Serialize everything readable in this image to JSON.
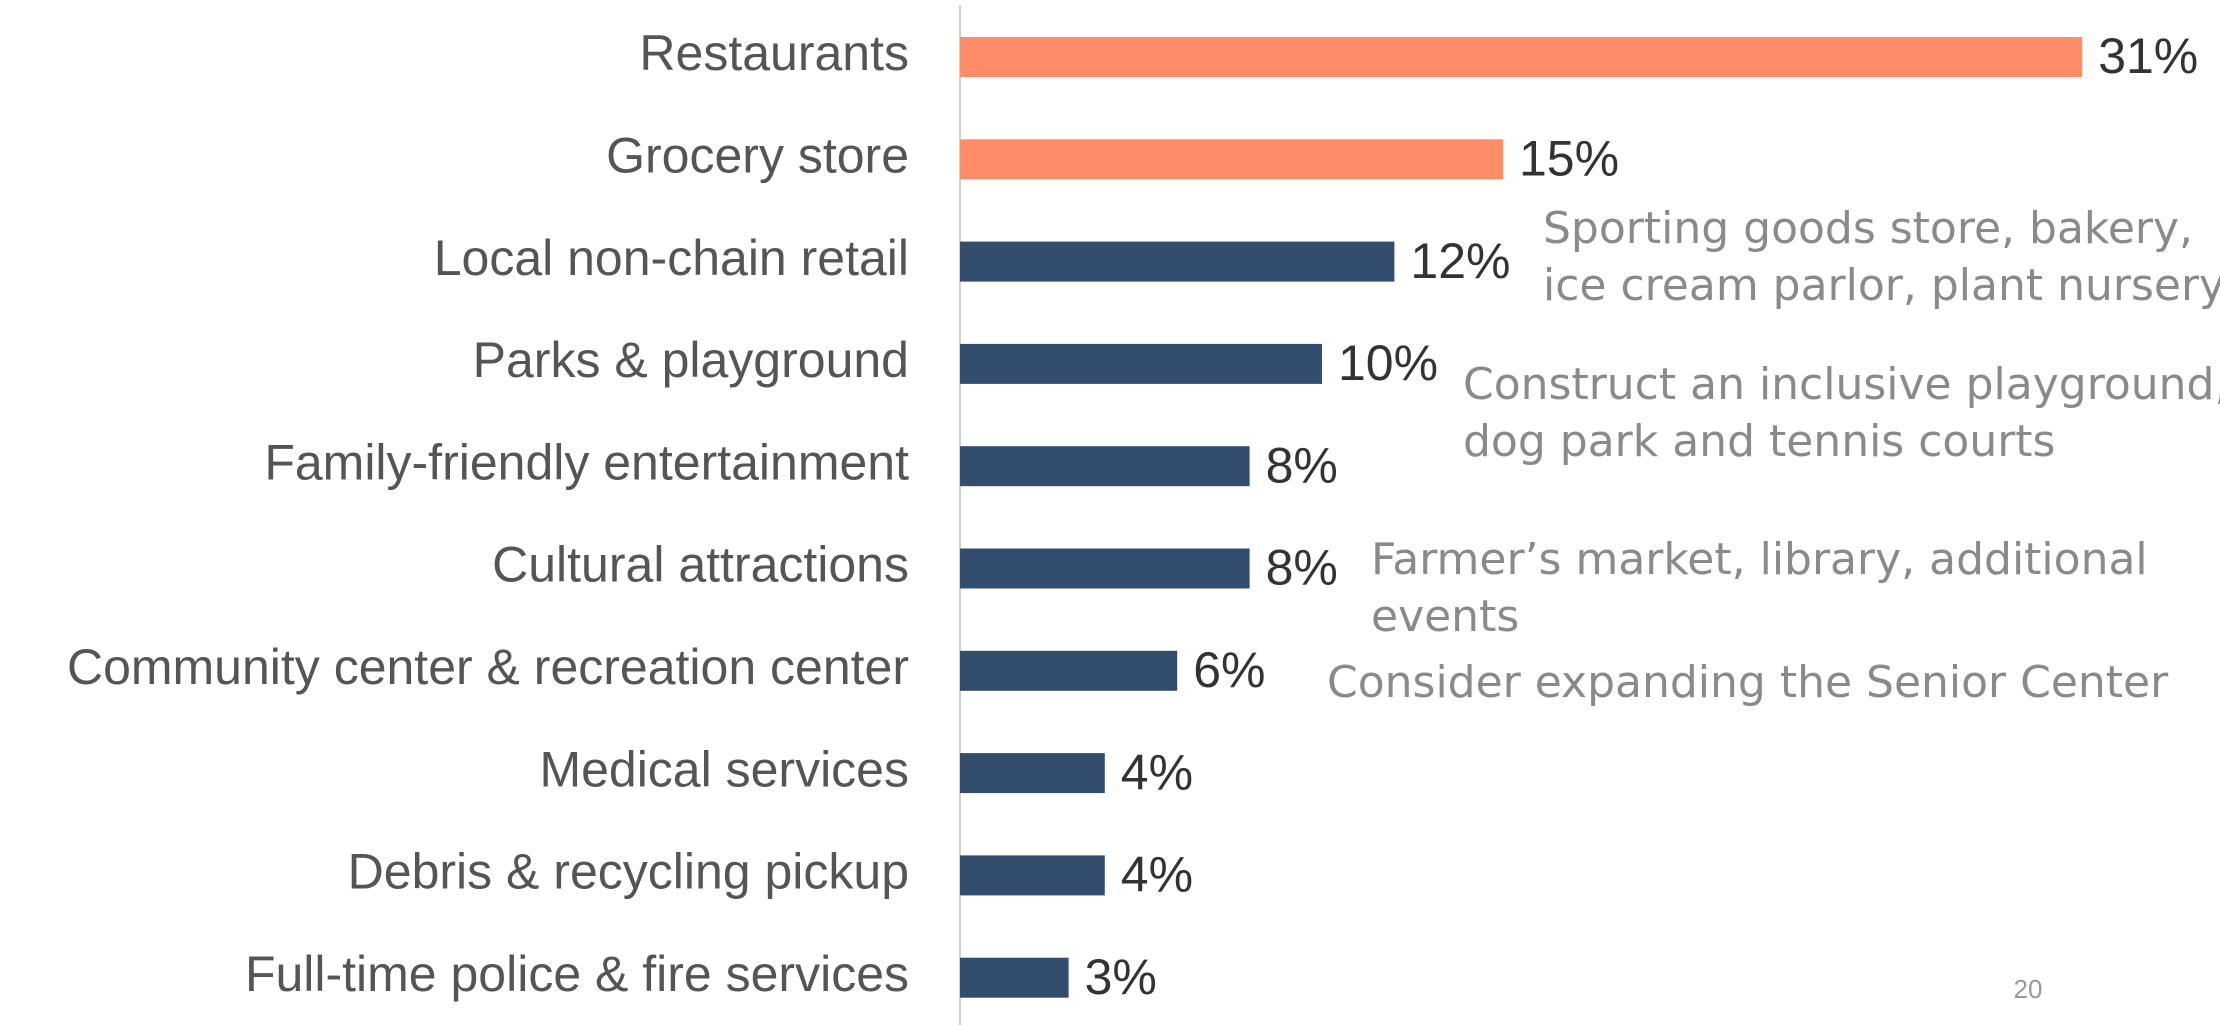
{
  "chart_data": {
    "type": "hbar",
    "categories": [
      "Restaurants",
      "Grocery store",
      "Local non-chain retail",
      "Parks & playground",
      "Family-friendly entertainment",
      "Cultural attractions",
      "Community center & recreation center",
      "Medical services",
      "Debris & recycling pickup",
      "Full-time police & fire services"
    ],
    "values": [
      31,
      15,
      12,
      10,
      8,
      8,
      6,
      4,
      4,
      3
    ],
    "value_labels": [
      "31%",
      "15%",
      "12%",
      "10%",
      "8%",
      "8%",
      "6%",
      "4%",
      "4%",
      "3%"
    ],
    "colors": [
      "#ff8c69",
      "#ff8c69",
      "#334d6e",
      "#334d6e",
      "#334d6e",
      "#334d6e",
      "#334d6e",
      "#334d6e",
      "#334d6e",
      "#334d6e"
    ],
    "annotations": [
      [
        "Sporting goods store, bakery,",
        "ice cream parlor, plant nursery"
      ],
      [
        "Construct an inclusive playground,",
        "dog park and tennis courts"
      ],
      [
        "Farmer’s market, library, additional",
        "events"
      ],
      [
        "Consider expanding the Senior Center"
      ]
    ],
    "page_number": "20"
  }
}
